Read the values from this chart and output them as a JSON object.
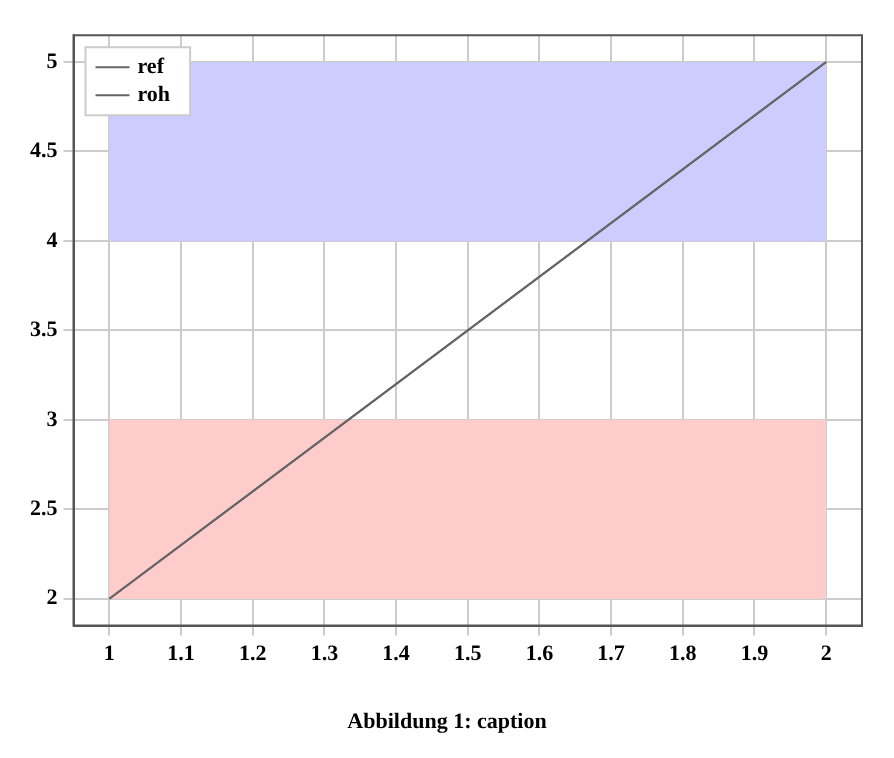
{
  "chart_data": {
    "type": "line",
    "annotations": [
      "Abbildung 1: caption"
    ],
    "x": [
      1,
      2
    ],
    "series": [
      {
        "name": "ref",
        "color": "#666666",
        "values": [
          2,
          5
        ]
      },
      {
        "name": "roh",
        "color": "#666666",
        "values": [
          2,
          5
        ]
      }
    ],
    "xlim": [
      0.95,
      2.05
    ],
    "xticks": [
      1,
      1.1,
      1.2,
      1.3,
      1.4,
      1.5,
      1.6,
      1.7,
      1.8,
      1.9,
      2
    ],
    "ylim": [
      1.85,
      5.15
    ],
    "yticks": [
      2,
      2.5,
      3,
      3.5,
      4,
      4.5,
      5
    ],
    "bands": [
      {
        "axis": "y",
        "from": 4,
        "to": 5,
        "color": "#ccccff"
      },
      {
        "axis": "y",
        "from": 2,
        "to": 3,
        "color": "#ffcccc"
      }
    ],
    "grid": true,
    "legend": "top left",
    "marker": "none",
    "line_style": "solid"
  }
}
